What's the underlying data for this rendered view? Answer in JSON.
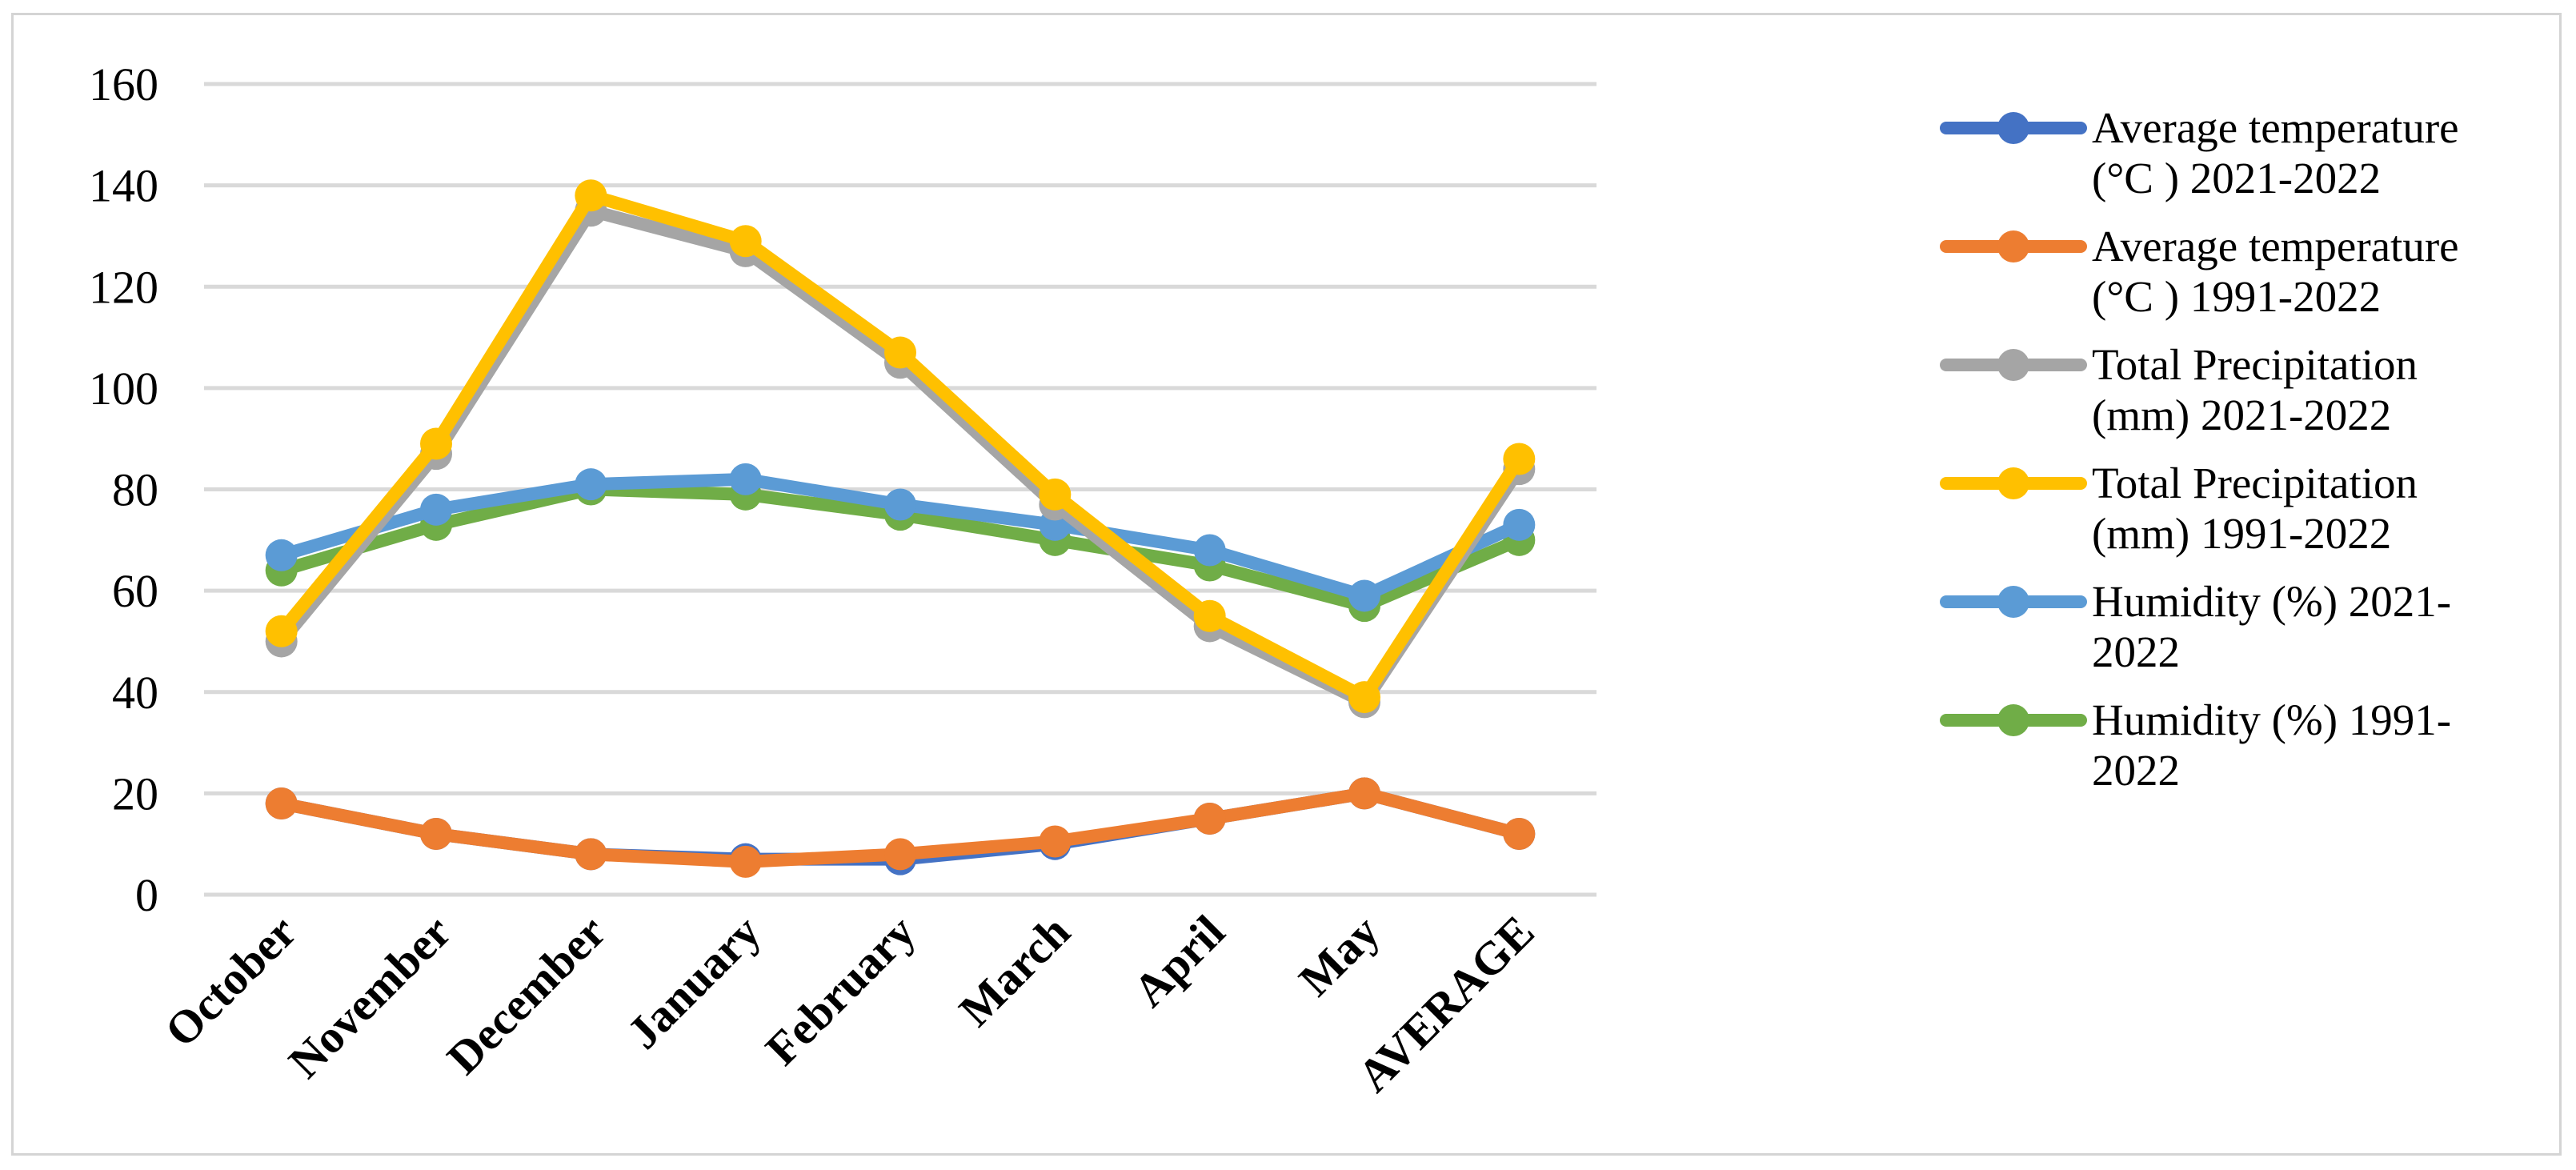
{
  "chart_data": {
    "type": "line",
    "categories": [
      "October",
      "November",
      "December",
      "January",
      "February",
      "March",
      "April",
      "May",
      "AVERAGE"
    ],
    "ylim": [
      0,
      160
    ],
    "yticks": [
      0,
      20,
      40,
      60,
      80,
      100,
      120,
      140,
      160
    ],
    "grid": true,
    "legend_position": "right",
    "series": [
      {
        "name": "Average temperature (°C ) 2021-2022",
        "color": "#4472C4",
        "values": [
          18,
          12,
          8,
          7,
          7,
          10,
          15,
          20,
          12
        ]
      },
      {
        "name": "Average temperature (°C ) 1991-2022",
        "color": "#ED7D31",
        "values": [
          18,
          12,
          8,
          6.5,
          8,
          10.5,
          15,
          20,
          12
        ]
      },
      {
        "name": "Total Precipitation (mm) 2021-2022",
        "color": "#A5A5A5",
        "values": [
          50,
          87,
          135,
          127,
          105,
          77,
          53,
          38,
          84
        ]
      },
      {
        "name": "Total Precipitation (mm) 1991-2022",
        "color": "#FFC000",
        "values": [
          52,
          89,
          138,
          129,
          107,
          79,
          55,
          39,
          86
        ]
      },
      {
        "name": "Humidity (%) 2021-2022",
        "color": "#5B9BD5",
        "values": [
          67,
          76,
          81,
          82,
          77,
          73,
          68,
          59,
          73
        ]
      },
      {
        "name": "Humidity (%) 1991-2022",
        "color": "#70AD47",
        "values": [
          64,
          73,
          80,
          79,
          75,
          70,
          65,
          57,
          70
        ]
      }
    ]
  }
}
